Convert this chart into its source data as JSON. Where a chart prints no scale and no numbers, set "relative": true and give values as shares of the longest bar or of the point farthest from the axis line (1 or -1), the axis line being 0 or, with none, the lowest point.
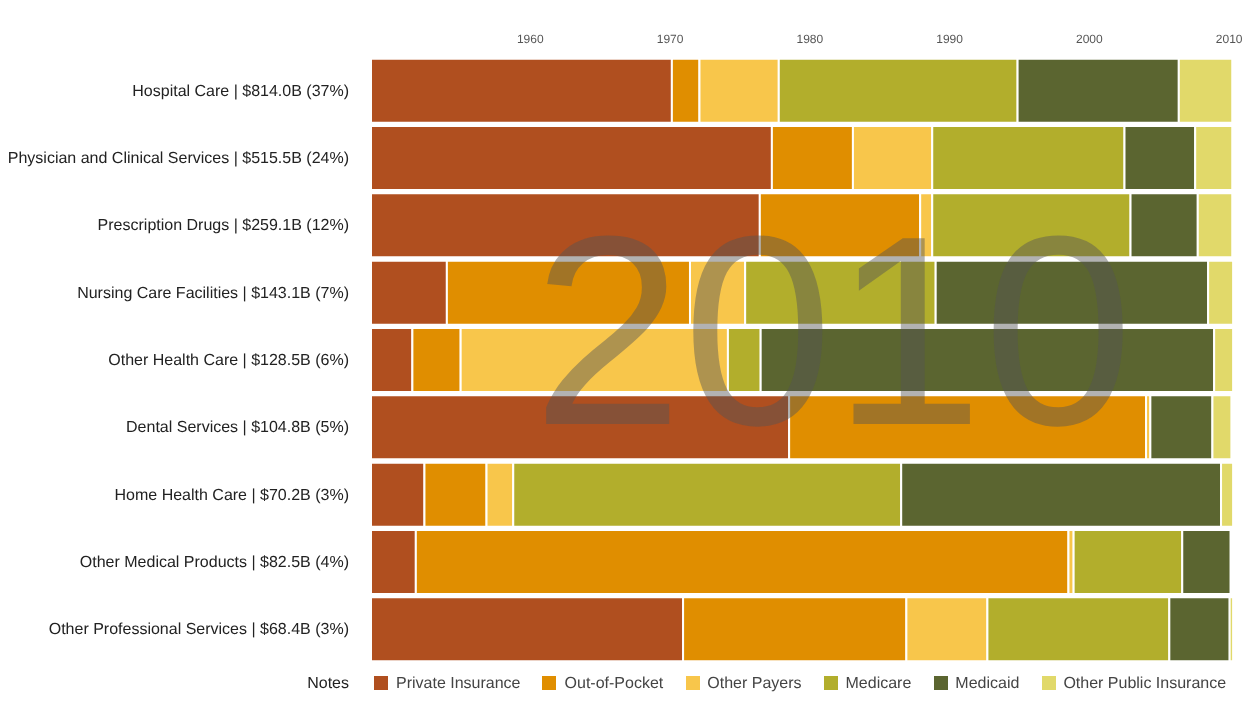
{
  "chart_data": {
    "type": "bar",
    "orientation": "horizontal",
    "stacked": true,
    "relative": true,
    "categories": [
      "Hospital Care | $814.0B (37%)",
      "Physician and Clinical Services | $515.5B (24%)",
      "Prescription Drugs | $259.1B (12%)",
      "Nursing Care Facilities | $143.1B (7%)",
      "Other Health Care | $128.5B (6%)",
      "Dental Services | $104.8B (5%)",
      "Home Health Care | $70.2B (3%)",
      "Other Medical Products | $82.5B (4%)",
      "Other Professional Services | $68.4B (3%)"
    ],
    "series": [
      {
        "name": "Private Insurance",
        "color": "#b04f1f",
        "values": [
          0.349,
          0.465,
          0.451,
          0.088,
          0.048,
          0.485,
          0.062,
          0.052,
          0.362
        ]
      },
      {
        "name": "Out-of-Pocket",
        "color": "#e08e00",
        "values": [
          0.032,
          0.094,
          0.186,
          0.282,
          0.056,
          0.414,
          0.072,
          0.757,
          0.259
        ]
      },
      {
        "name": "Other Payers",
        "color": "#f8c64b",
        "values": [
          0.092,
          0.092,
          0.014,
          0.064,
          0.31,
          0.005,
          0.031,
          0.006,
          0.094
        ]
      },
      {
        "name": "Medicare",
        "color": "#b2ae2c",
        "values": [
          0.277,
          0.223,
          0.23,
          0.221,
          0.038,
          null,
          0.45,
          0.126,
          0.211
        ]
      },
      {
        "name": "Medicaid",
        "color": "#5b6530",
        "values": [
          0.187,
          0.082,
          0.078,
          0.316,
          0.526,
          0.072,
          0.371,
          0.056,
          0.07
        ]
      },
      {
        "name": "Other Public Insurance",
        "color": "#e1d96a",
        "values": [
          0.062,
          0.043,
          0.04,
          0.029,
          0.022,
          0.022,
          0.014,
          null,
          0.004
        ]
      }
    ],
    "legend": "bottom",
    "annotations": [
      "1960",
      "1970",
      "1980",
      "1990",
      "2000",
      "2010",
      "2010",
      "Notes"
    ]
  }
}
